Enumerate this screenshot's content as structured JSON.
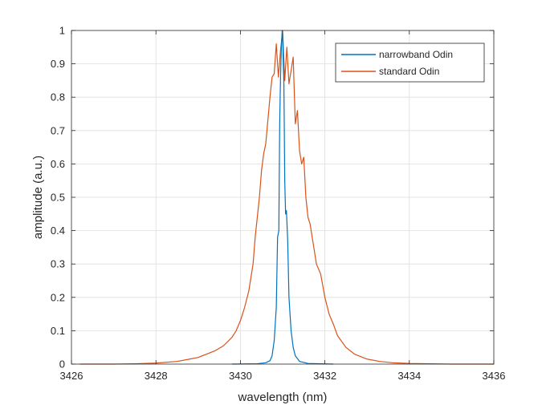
{
  "chart_data": {
    "type": "line",
    "title": "",
    "xlabel": "wavelength (nm)",
    "ylabel": "amplitude (a.u.)",
    "xlim": [
      3426,
      3436
    ],
    "ylim": [
      0,
      1
    ],
    "xticks": [
      "3426",
      "3428",
      "3430",
      "3432",
      "3434",
      "3436"
    ],
    "yticks": [
      "0",
      "0.1",
      "0.2",
      "0.3",
      "0.4",
      "0.5",
      "0.6",
      "0.7",
      "0.8",
      "0.9",
      "1"
    ],
    "grid": true,
    "legend_position": "top-right",
    "series": [
      {
        "name": "narrowband Odin",
        "color": "#0072BD",
        "x": [
          3429.8,
          3430.4,
          3430.6,
          3430.7,
          3430.75,
          3430.8,
          3430.85,
          3430.88,
          3430.91,
          3430.93,
          3430.95,
          3430.97,
          3430.99,
          3431.0,
          3431.01,
          3431.03,
          3431.05,
          3431.07,
          3431.09,
          3431.12,
          3431.15,
          3431.2,
          3431.25,
          3431.3,
          3431.4,
          3431.6,
          3432.2
        ],
        "y": [
          0.0,
          0.001,
          0.004,
          0.01,
          0.025,
          0.07,
          0.17,
          0.38,
          0.4,
          0.72,
          0.86,
          0.95,
          1.0,
          0.99,
          0.93,
          0.84,
          0.55,
          0.45,
          0.46,
          0.37,
          0.2,
          0.1,
          0.05,
          0.025,
          0.008,
          0.002,
          0.0
        ]
      },
      {
        "name": "standard Odin",
        "color": "#D95319",
        "x": [
          3426.2,
          3427.0,
          3427.5,
          3428.0,
          3428.5,
          3428.8,
          3429.0,
          3429.2,
          3429.4,
          3429.6,
          3429.8,
          3429.9,
          3430.0,
          3430.1,
          3430.2,
          3430.3,
          3430.35,
          3430.4,
          3430.45,
          3430.5,
          3430.55,
          3430.6,
          3430.65,
          3430.7,
          3430.75,
          3430.8,
          3430.85,
          3430.9,
          3430.95,
          3431.0,
          3431.05,
          3431.1,
          3431.15,
          3431.2,
          3431.25,
          3431.3,
          3431.35,
          3431.4,
          3431.45,
          3431.5,
          3431.55,
          3431.6,
          3431.65,
          3431.7,
          3431.8,
          3431.9,
          3432.0,
          3432.1,
          3432.2,
          3432.3,
          3432.5,
          3432.7,
          3433.0,
          3433.3,
          3433.6,
          3434.0,
          3434.5,
          3435.0,
          3436.0
        ],
        "y": [
          0.0,
          0.0,
          0.001,
          0.003,
          0.008,
          0.015,
          0.02,
          0.03,
          0.04,
          0.055,
          0.08,
          0.1,
          0.13,
          0.17,
          0.22,
          0.3,
          0.38,
          0.44,
          0.5,
          0.58,
          0.63,
          0.66,
          0.73,
          0.8,
          0.86,
          0.87,
          0.96,
          0.86,
          0.94,
          1.0,
          0.85,
          0.95,
          0.84,
          0.88,
          0.92,
          0.72,
          0.76,
          0.64,
          0.6,
          0.62,
          0.5,
          0.44,
          0.42,
          0.38,
          0.3,
          0.27,
          0.2,
          0.15,
          0.12,
          0.085,
          0.05,
          0.03,
          0.015,
          0.008,
          0.004,
          0.002,
          0.001,
          0.0,
          0.0
        ]
      }
    ]
  }
}
